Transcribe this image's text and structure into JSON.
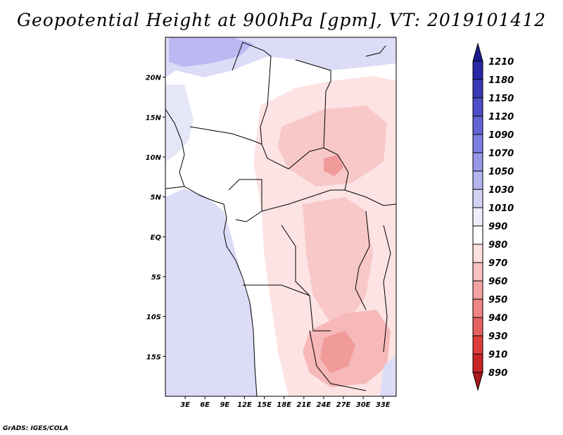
{
  "title": "Geopotential Height at 900hPa [gpm], VT: 2019101412",
  "credit": "GrADS: IGES/COLA",
  "map": {
    "lon_range": [
      0,
      35
    ],
    "lat_range": [
      -20,
      25
    ],
    "x_ticks": [
      "3E",
      "6E",
      "9E",
      "12E",
      "15E",
      "18E",
      "21E",
      "24E",
      "27E",
      "30E",
      "33E"
    ],
    "y_ticks": [
      "20N",
      "15N",
      "10N",
      "5N",
      "EQ",
      "5S",
      "10S",
      "15S"
    ]
  },
  "colorbar": {
    "levels": [
      "1210",
      "1180",
      "1150",
      "1120",
      "1090",
      "1070",
      "1050",
      "1030",
      "1010",
      "990",
      "980",
      "970",
      "960",
      "950",
      "940",
      "930",
      "910",
      "890"
    ],
    "colors": [
      "#1a1a8c",
      "#2828a6",
      "#3a3ab8",
      "#4d4dc8",
      "#6464d6",
      "#7d7de0",
      "#9898e8",
      "#b4b4ef",
      "#d2d2f5",
      "#eeeefb",
      "#ffffff",
      "#fde0e0",
      "#f9c2c2",
      "#f4a3a3",
      "#ee8585",
      "#e66060",
      "#dd3c3c",
      "#c92424",
      "#aa1a1a"
    ]
  }
}
